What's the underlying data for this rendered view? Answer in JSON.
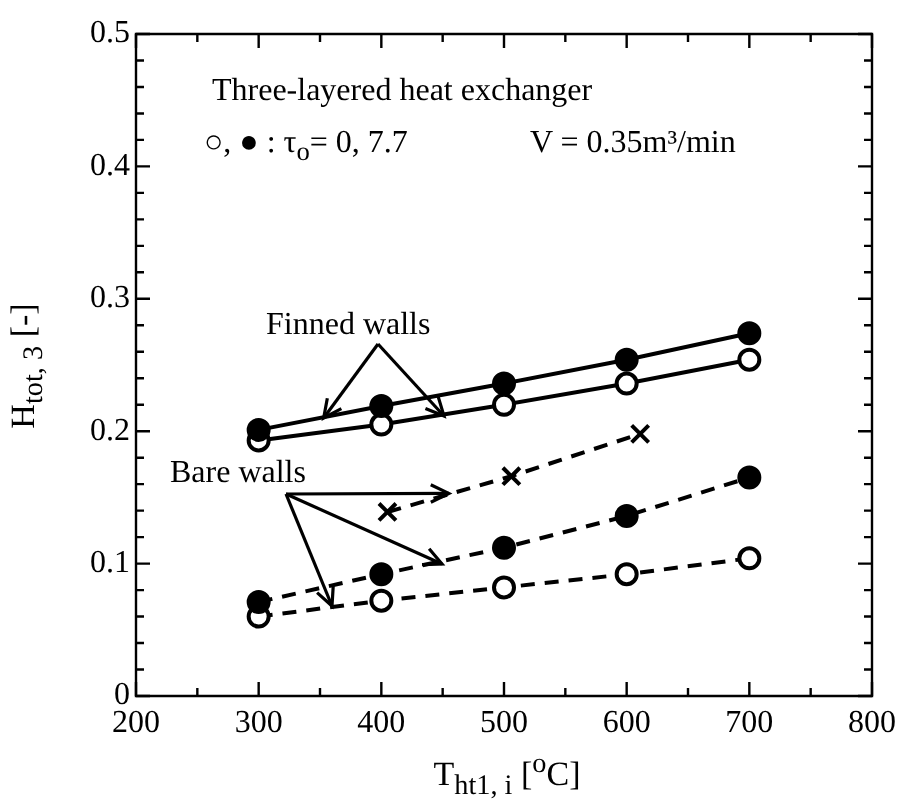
{
  "chart_data": {
    "type": "line",
    "xlabel": "T$_{ht1, i}$ [$^{o}$C]",
    "ylabel": "H$_{tot, 3}$ [-]",
    "xlim": [
      200,
      800
    ],
    "ylim": [
      0,
      0.5
    ],
    "xticks": [
      200,
      {
        "value": 250,
        "label": null
      },
      300,
      {
        "value": 350,
        "label": null
      },
      400,
      {
        "value": 450,
        "label": null
      },
      500,
      {
        "value": 550,
        "label": null
      },
      600,
      {
        "value": 650,
        "label": null
      },
      700,
      {
        "value": 750,
        "label": null
      },
      800
    ],
    "yticks": [
      0,
      {
        "value": 0.02,
        "label": null
      },
      {
        "value": 0.04,
        "label": null
      },
      {
        "value": 0.06,
        "label": null
      },
      {
        "value": 0.08,
        "label": null
      },
      0.1,
      {
        "value": 0.12,
        "label": null
      },
      {
        "value": 0.14,
        "label": null
      },
      {
        "value": 0.16,
        "label": null
      },
      {
        "value": 0.18,
        "label": null
      },
      0.2,
      {
        "value": 0.22,
        "label": null
      },
      {
        "value": 0.24,
        "label": null
      },
      {
        "value": 0.26,
        "label": null
      },
      {
        "value": 0.28,
        "label": null
      },
      0.3,
      {
        "value": 0.32,
        "label": null
      },
      {
        "value": 0.34,
        "label": null
      },
      {
        "value": 0.36,
        "label": null
      },
      {
        "value": 0.38,
        "label": null
      },
      0.4,
      {
        "value": 0.42,
        "label": null
      },
      {
        "value": 0.44,
        "label": null
      },
      {
        "value": 0.46,
        "label": null
      },
      {
        "value": 0.48,
        "label": null
      },
      0.5
    ],
    "grid": false,
    "legend": false,
    "series": [
      {
        "color": "#000000",
        "marker": "circle",
        "line_style": "solid",
        "x": [
          300,
          400,
          500,
          600,
          700
        ],
        "values": [
          0.201,
          0.219,
          0.236,
          0.254,
          0.274
        ]
      },
      {
        "color": "#000000",
        "marker": "circle",
        "line_style": "solid",
        "x": [
          300,
          400,
          500,
          600,
          700
        ],
        "values": [
          0.193,
          0.205,
          0.22,
          0.236,
          0.254
        ]
      },
      {
        "color": "#000000",
        "marker": "cross",
        "line_style": "dashed",
        "x": [
          405,
          506,
          611
        ],
        "values": [
          0.139,
          0.166,
          0.198
        ]
      },
      {
        "color": "#000000",
        "marker": "circle",
        "line_style": "dashed",
        "x": [
          300,
          400,
          500,
          600,
          700
        ],
        "values": [
          0.071,
          0.092,
          0.112,
          0.136,
          0.165
        ]
      },
      {
        "color": "#000000",
        "marker": "circle",
        "line_style": "dashed",
        "x": [
          300,
          400,
          500,
          600,
          700
        ],
        "values": [
          0.06,
          0.072,
          0.082,
          0.092,
          0.104
        ]
      }
    ],
    "annotations": [
      "Three-layered heat exchanger",
      "○, ● : τ$_{o}$= 0, 7.7",
      "V = 0.35m³/min",
      {
        "text": "Finned walls",
        "x": 353,
        "y": 0.21
      },
      {
        "text": "Bare walls",
        "x": 455,
        "y": 0.153
      }
    ]
  }
}
